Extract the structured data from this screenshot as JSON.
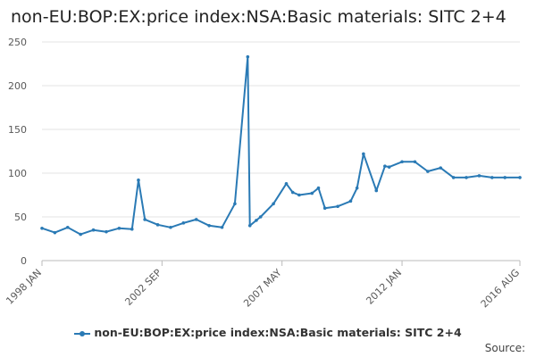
{
  "chart_data": {
    "type": "line",
    "title": "non-EU:BOP:EX:price index:NSA:Basic materials: SITC 2+4",
    "xlabel": "",
    "ylabel": "",
    "ylim": [
      0,
      250
    ],
    "yticks": [
      0,
      50,
      100,
      150,
      200,
      250
    ],
    "xlim": [
      "1998 JAN",
      "2016 AUG"
    ],
    "xticks": [
      "1998 JAN",
      "2002 SEP",
      "2007 MAY",
      "2012 JAN",
      "2016 AUG"
    ],
    "grid": "horizontal",
    "legend_position": "bottom",
    "series": [
      {
        "name": "non-EU:BOP:EX:price index:NSA:Basic materials: SITC 2+4",
        "color": "#2a7ab5",
        "x": [
          "1998 JAN",
          "1998 JUL",
          "1999 JAN",
          "1999 JUL",
          "2000 JAN",
          "2000 JUL",
          "2001 JAN",
          "2001 JUL",
          "2001 OCT",
          "2002 JAN",
          "2002 JUL",
          "2003 JAN",
          "2003 JUL",
          "2004 JAN",
          "2004 JUL",
          "2005 JAN",
          "2005 JUL",
          "2006 JAN",
          "2006 FEB",
          "2006 MAY",
          "2006 JUL",
          "2007 JAN",
          "2007 JUL",
          "2007 OCT",
          "2008 JAN",
          "2008 JUL",
          "2008 OCT",
          "2009 JAN",
          "2009 JUL",
          "2010 JAN",
          "2010 APR",
          "2010 JUL",
          "2011 JAN",
          "2011 MAY",
          "2011 JUL",
          "2012 JAN",
          "2012 JUL",
          "2013 JAN",
          "2013 JUL",
          "2014 JAN",
          "2014 JUL",
          "2015 JAN",
          "2015 JUL",
          "2016 JAN",
          "2016 AUG"
        ],
        "values": [
          37,
          32,
          38,
          30,
          35,
          33,
          37,
          36,
          92,
          47,
          41,
          38,
          43,
          47,
          40,
          38,
          65,
          233,
          40,
          46,
          50,
          65,
          88,
          78,
          75,
          77,
          83,
          60,
          62,
          68,
          83,
          122,
          80,
          108,
          107,
          113,
          113,
          102,
          106,
          95,
          95,
          97,
          95,
          95,
          95
        ]
      }
    ]
  },
  "legend": {
    "label": "non-EU:BOP:EX:price index:NSA:Basic materials: SITC 2+4"
  },
  "source_label": "Source:"
}
